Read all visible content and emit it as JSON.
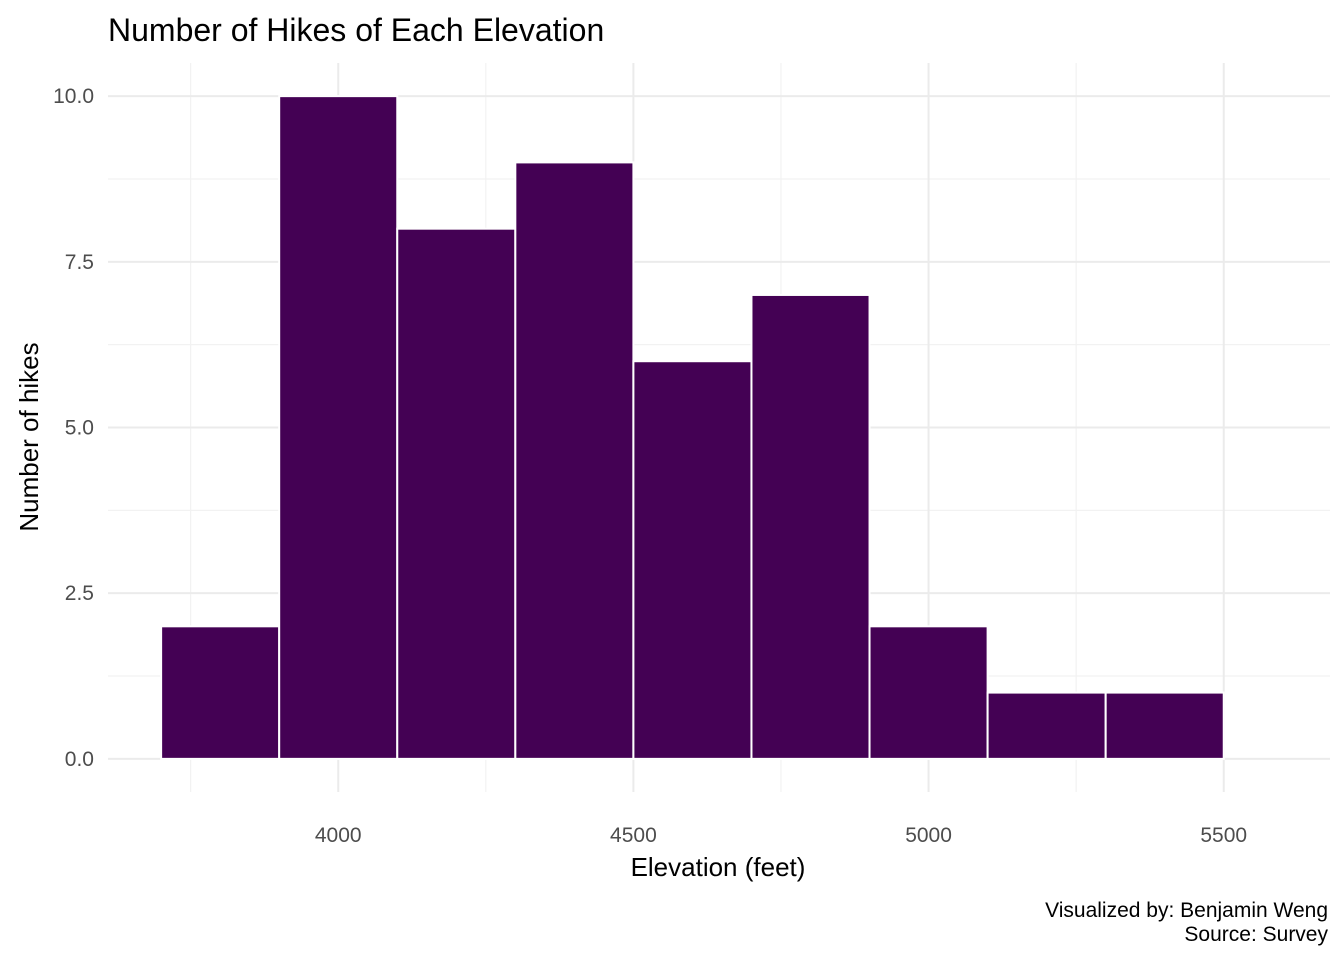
{
  "chart_data": {
    "type": "bar",
    "title": "Number of Hikes of Each Elevation",
    "xlabel": "Elevation (feet)",
    "ylabel": "Number of hikes",
    "caption": [
      "Visualized by: Benjamin Weng",
      "Source: Survey"
    ],
    "bin_width": 200,
    "bins": [
      {
        "start": 3700,
        "end": 3900,
        "count": 2
      },
      {
        "start": 3900,
        "end": 4100,
        "count": 10
      },
      {
        "start": 4100,
        "end": 4300,
        "count": 8
      },
      {
        "start": 4300,
        "end": 4500,
        "count": 9
      },
      {
        "start": 4500,
        "end": 4700,
        "count": 6
      },
      {
        "start": 4700,
        "end": 4900,
        "count": 7
      },
      {
        "start": 4900,
        "end": 5100,
        "count": 2
      },
      {
        "start": 5100,
        "end": 5300,
        "count": 1
      },
      {
        "start": 5300,
        "end": 5500,
        "count": 1
      }
    ],
    "xlim": [
      3610,
      5680
    ],
    "ylim": [
      -0.5,
      10.5
    ],
    "x_ticks": [
      4000,
      4500,
      5000,
      5500
    ],
    "x_tick_labels": [
      "4000",
      "4500",
      "5000",
      "5500"
    ],
    "y_ticks": [
      0,
      2.5,
      5,
      7.5,
      10
    ],
    "y_tick_labels": [
      "0.0",
      "2.5",
      "5.0",
      "7.5",
      "10.0"
    ],
    "x_minor": [
      3750,
      4250,
      4750,
      5250
    ],
    "y_minor": [
      1.25,
      3.75,
      6.25,
      8.75
    ],
    "grid": true,
    "legend": "none",
    "bar_color": "#440154"
  }
}
